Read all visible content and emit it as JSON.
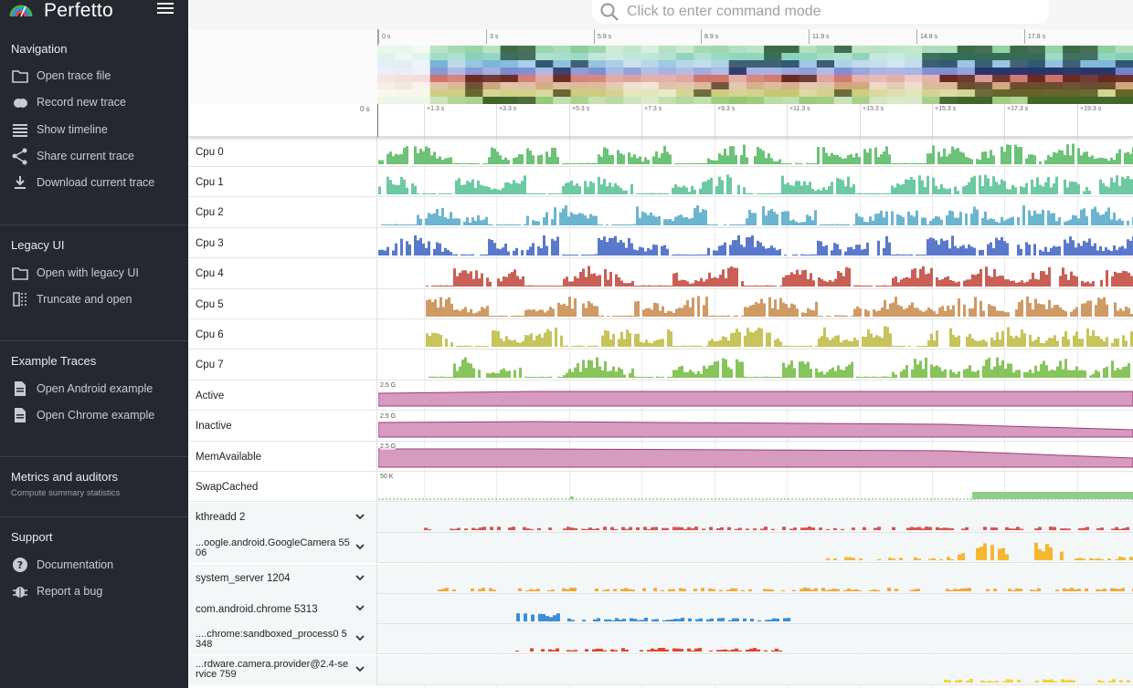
{
  "app": {
    "title": "Perfetto"
  },
  "search": {
    "placeholder": "Click to enter command mode"
  },
  "sidebar": {
    "sections": [
      {
        "title": "Navigation",
        "items": [
          {
            "label": "Open trace file",
            "icon": "folder-icon"
          },
          {
            "label": "Record new trace",
            "icon": "record-icon"
          },
          {
            "label": "Show timeline",
            "icon": "timeline-icon"
          },
          {
            "label": "Share current trace",
            "icon": "share-icon"
          },
          {
            "label": "Download current trace",
            "icon": "download-icon"
          }
        ]
      },
      {
        "title": "Legacy UI",
        "items": [
          {
            "label": "Open with legacy UI",
            "icon": "folder-icon"
          },
          {
            "label": "Truncate and open",
            "icon": "truncate-icon"
          }
        ]
      },
      {
        "title": "Example Traces",
        "items": [
          {
            "label": "Open Android example",
            "icon": "file-icon"
          },
          {
            "label": "Open Chrome example",
            "icon": "file-icon"
          }
        ]
      },
      {
        "title": "Metrics and auditors",
        "subtitle": "Compute summary statistics",
        "items": []
      },
      {
        "title": "Support",
        "items": [
          {
            "label": "Documentation",
            "icon": "help-icon"
          },
          {
            "label": "Report a bug",
            "icon": "bug-icon"
          }
        ]
      }
    ]
  },
  "overview": {
    "ticks": [
      "0 s",
      "3 s",
      "5.9 s",
      "8.9 s",
      "11.9 s",
      "14.8 s",
      "17.8 s"
    ]
  },
  "timeaxis": {
    "zero": "0 s",
    "ticks": [
      "+1.3 s",
      "+3.3 s",
      "+5.3 s",
      "+7.3 s",
      "+9.3 s",
      "+11.3 s",
      "+13.3 s",
      "+15.3 s",
      "+17.3 s",
      "+19.3 s"
    ]
  },
  "tracks": [
    {
      "name": "Cpu 0",
      "kind": "cpu",
      "color": "#6cc276"
    },
    {
      "name": "Cpu 1",
      "kind": "cpu",
      "color": "#6cc9a2"
    },
    {
      "name": "Cpu 2",
      "kind": "cpu",
      "color": "#6cb5d0"
    },
    {
      "name": "Cpu 3",
      "kind": "cpu",
      "color": "#5a78cc"
    },
    {
      "name": "Cpu 4",
      "kind": "cpu",
      "color": "#c95f55"
    },
    {
      "name": "Cpu 5",
      "kind": "cpu",
      "color": "#cf9a64"
    },
    {
      "name": "Cpu 6",
      "kind": "cpu",
      "color": "#c6c45a"
    },
    {
      "name": "Cpu 7",
      "kind": "cpu",
      "color": "#87c45b"
    },
    {
      "name": "Active",
      "kind": "counter",
      "color": "#d79bbf",
      "scale": "2.5 G"
    },
    {
      "name": "Inactive",
      "kind": "counter",
      "color": "#d79bbf",
      "scale": "2.5 G"
    },
    {
      "name": "MemAvailable",
      "kind": "counter",
      "color": "#d79bbf",
      "scale": "2.5 G"
    },
    {
      "name": "SwapCached",
      "kind": "counter",
      "color": "#8fce8a",
      "scale": "50 K"
    },
    {
      "name": "kthreadd 2",
      "kind": "proc",
      "color": "#d9534f"
    },
    {
      "name": "...oogle.android.GoogleCamera 5506",
      "kind": "proc",
      "color": "#f5b731"
    },
    {
      "name": "system_server 1204",
      "kind": "proc",
      "color": "#f2a93b"
    },
    {
      "name": "com.android.chrome 5313",
      "kind": "proc",
      "color": "#3b8fd9"
    },
    {
      "name": "....chrome:sandboxed_process0 5348",
      "kind": "proc",
      "color": "#e0442c"
    },
    {
      "name": "...rdware.camera.provider@2.4-service 759",
      "kind": "proc",
      "color": "#f1d33a"
    }
  ]
}
